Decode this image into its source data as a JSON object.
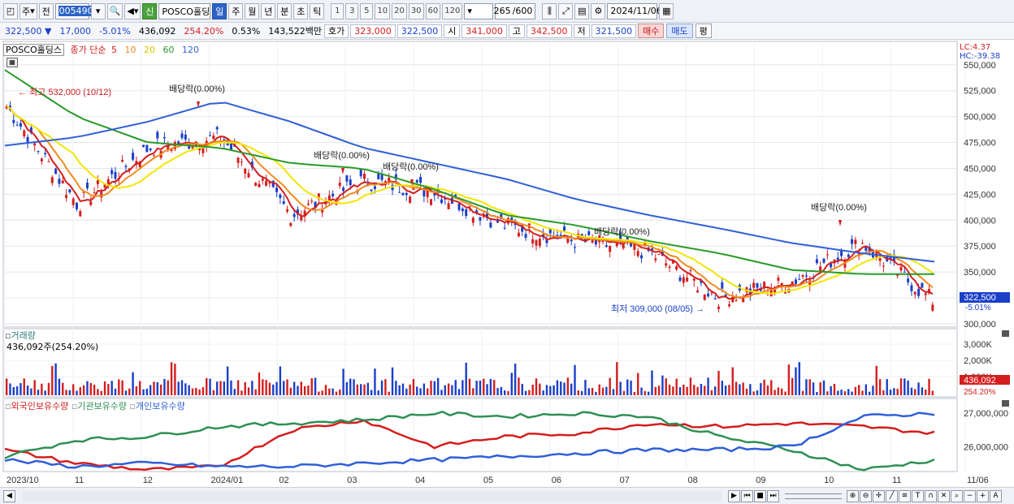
{
  "toolbar": {
    "period_type": "주",
    "prev_label": "전",
    "code": "005490",
    "sin_label": "신",
    "stock_name": "POSCO홀딩스",
    "periods": [
      "일",
      "주",
      "월",
      "년",
      "분",
      "초",
      "틱"
    ],
    "active_period": "일",
    "intervals": [
      "1",
      "3",
      "5",
      "10",
      "20",
      "30",
      "60",
      "120"
    ],
    "count": "265",
    "count_max": "/600",
    "date": "2024/11/06"
  },
  "quote": {
    "price": "322,500",
    "change": "17,000",
    "change_pct": "-5.01%",
    "volume": "436,092",
    "volume_ratio": "254.20%",
    "turnover": "0.53%",
    "amount": "143,522백만",
    "bid_label": "호가",
    "ask": "323,000",
    "bid": "322,500",
    "open_label": "시",
    "open": "341,000",
    "high_label": "고",
    "high": "342,500",
    "low_label": "저",
    "low": "321,500",
    "buy_label": "매수",
    "sell_label": "매도",
    "eval_label": "평"
  },
  "price_panel": {
    "stock_label": "POSCO홀딩스",
    "ma_title": "종가 단순",
    "ma_periods": [
      "5",
      "10",
      "20",
      "60",
      "120"
    ],
    "ma_colors": [
      "#d41e1e",
      "#f08c1e",
      "#f2e600",
      "#2a9a2a",
      "#2f5fd8"
    ],
    "lc_label": "LC:4.37",
    "hc_label": "HC:-39.38",
    "y_ticks": [
      "550,000",
      "525,000",
      "500,000",
      "475,000",
      "450,000",
      "425,000",
      "400,000",
      "375,000",
      "350,000",
      "325,000",
      "300,000"
    ],
    "current_price_tag": "322,500",
    "current_pct_tag": "-5.01%",
    "high_annotation": "최고 532,000 (10/12)",
    "low_annotation": "최저 309,000 (08/05)",
    "dividend_labels": [
      "배당락(0.00%)",
      "배당락(0.00%)",
      "배당락(0.00%)",
      "배당락(0.00%)",
      "배당락(0.00%)"
    ]
  },
  "volume_panel": {
    "title": "거래량",
    "subtitle": "436,092주(254.20%)",
    "y_ticks": [
      "3,000K",
      "2,000K",
      "1,000K"
    ],
    "current_tag": "436,092",
    "current_pct": "254.20%"
  },
  "holdings_panel": {
    "series_labels": [
      "외국인보유수량",
      "기관보유수량",
      "개인보유수량"
    ],
    "series_colors": [
      "#d41e1e",
      "#2f8f55",
      "#2f5fd8"
    ],
    "y_ticks": [
      "27,000,000",
      "26,000,000"
    ]
  },
  "x_axis": {
    "labels": [
      "2023/10",
      "11",
      "12",
      "2024/01",
      "02",
      "03",
      "04",
      "05",
      "06",
      "07",
      "08",
      "09",
      "10",
      "11",
      "11/06"
    ]
  },
  "chart_data": {
    "type": "line",
    "title": "POSCO홀딩스",
    "x_range": [
      "2023/10",
      "2024/11/06"
    ],
    "ylim": [
      300000,
      560000
    ],
    "series": [
      {
        "name": "종가 (approx)",
        "x": [
          "2023/10",
          "2023/11",
          "2023/12",
          "2024/01",
          "2024/02",
          "2024/03",
          "2024/04",
          "2024/05",
          "2024/06",
          "2024/07",
          "2024/08",
          "2024/09",
          "2024/10",
          "2024/11/06"
        ],
        "values": [
          510000,
          415000,
          470000,
          480000,
          405000,
          438000,
          428000,
          395000,
          380000,
          370000,
          325000,
          340000,
          378000,
          322500
        ]
      },
      {
        "name": "120",
        "x": [
          "2023/10",
          "2023/11",
          "2023/12",
          "2024/01",
          "2024/02",
          "2024/03",
          "2024/04",
          "2024/05",
          "2024/06",
          "2024/07",
          "2024/08",
          "2024/09",
          "2024/10",
          "2024/11/06"
        ],
        "values": [
          472000,
          480000,
          495000,
          515000,
          495000,
          470000,
          455000,
          440000,
          420000,
          405000,
          392000,
          378000,
          368000,
          360000
        ]
      },
      {
        "name": "60",
        "x": [
          "2023/10",
          "2023/11",
          "2023/12",
          "2024/01",
          "2024/02",
          "2024/03",
          "2024/04",
          "2024/05",
          "2024/06",
          "2024/07",
          "2024/08",
          "2024/09",
          "2024/10",
          "2024/11/06"
        ],
        "values": [
          545000,
          500000,
          475000,
          470000,
          455000,
          450000,
          430000,
          405000,
          395000,
          380000,
          368000,
          352000,
          348000,
          348000
        ]
      }
    ],
    "volume": {
      "unit": "주",
      "max_tick": 3000000
    },
    "holdings": {
      "ylim": [
        25300000,
        27200000
      ],
      "series": [
        {
          "name": "외국인보유수량",
          "values": [
            25900000,
            25500000,
            25300000,
            25400000,
            26500000,
            26800000,
            26000000,
            26300000,
            26400000,
            26700000,
            26600000,
            26700000,
            26600000,
            26400000
          ]
        },
        {
          "name": "기관보유수량",
          "values": [
            25700000,
            26200000,
            26300000,
            26600000,
            26700000,
            26800000,
            27000000,
            26900000,
            27000000,
            26900000,
            26300000,
            25900000,
            25300000,
            25600000
          ]
        },
        {
          "name": "개인보유수량",
          "values": [
            25600000,
            25400000,
            25500000,
            25400000,
            25400000,
            25500000,
            25600000,
            25700000,
            25800000,
            25900000,
            25900000,
            26000000,
            26900000,
            27000000
          ]
        }
      ]
    }
  }
}
